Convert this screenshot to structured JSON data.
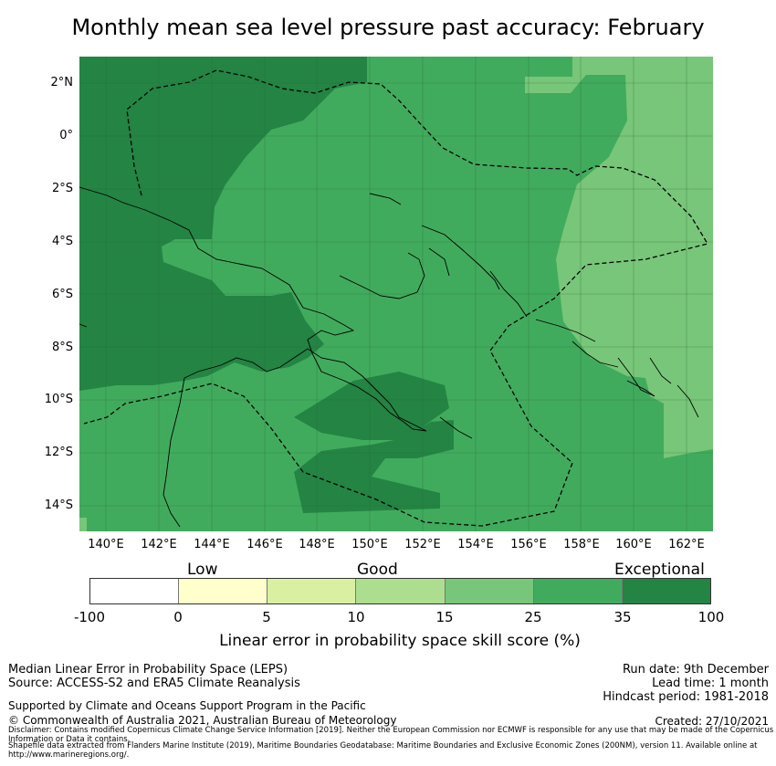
{
  "title": "Monthly mean sea level pressure past accuracy: February",
  "map": {
    "region": "Papua New Guinea and Solomon Islands",
    "lat_labels": [
      "2°N",
      "0°",
      "2°S",
      "4°S",
      "6°S",
      "8°S",
      "10°S",
      "12°S",
      "14°S"
    ],
    "lon_labels": [
      "140°E",
      "142°E",
      "144°E",
      "146°E",
      "148°E",
      "150°E",
      "152°E",
      "154°E",
      "156°E",
      "158°E",
      "160°E",
      "162°E"
    ]
  },
  "colorbar": {
    "categories": [
      "Low",
      "Good",
      "Exceptional"
    ],
    "ticks": [
      "-100",
      "0",
      "5",
      "10",
      "15",
      "25",
      "35",
      "100"
    ],
    "colors": [
      "#ffffff",
      "#ffffcc",
      "#d9f0a3",
      "#addd8e",
      "#78c679",
      "#41ab5d",
      "#238443"
    ],
    "label": "Linear error in probability space skill score (%)"
  },
  "footer": {
    "metric": "Median Linear Error in Probability Space (LEPS)",
    "source": "Source: ACCESS-S2 and ERA5 Climate Reanalysis",
    "support": "Supported by Climate and Oceans Support Program in the Pacific",
    "copyright": "© Commonwealth of Australia 2021, Australian Bureau of Meteorology",
    "run_date": "Run date: 9th December",
    "lead_time": "Lead time: 1 month",
    "hindcast": "Hindcast period: 1981-2018",
    "created": "Created: 27/10/2021",
    "disclaimer": "Disclaimer: Contains modified Copernicus Climate Change Service Information [2019]. Neither the European Commission nor ECMWF is responsible for any use that may be made of the Copernicus Information or Data it contains.",
    "shapefile": "Shapefile data extracted from Flanders Marine Institute (2019), Maritime Boundaries Geodatabase: Maritime Boundaries and Exclusive Economic Zones (200NM), version 11. Available online at http://www.marineregions.org/."
  }
}
